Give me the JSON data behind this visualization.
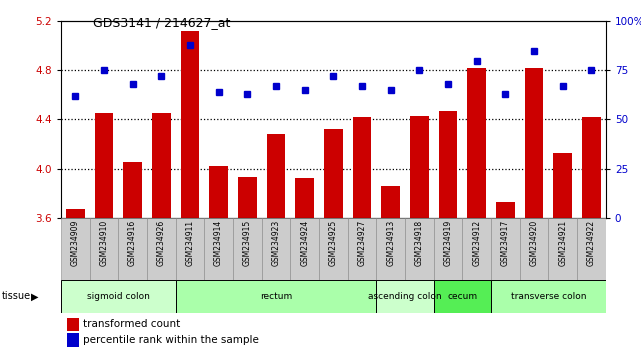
{
  "title": "GDS3141 / 214627_at",
  "samples": [
    "GSM234909",
    "GSM234910",
    "GSM234916",
    "GSM234926",
    "GSM234911",
    "GSM234914",
    "GSM234915",
    "GSM234923",
    "GSM234924",
    "GSM234925",
    "GSM234927",
    "GSM234913",
    "GSM234918",
    "GSM234919",
    "GSM234912",
    "GSM234917",
    "GSM234920",
    "GSM234921",
    "GSM234922"
  ],
  "bar_values": [
    3.67,
    4.45,
    4.05,
    4.45,
    5.12,
    4.02,
    3.93,
    4.28,
    3.92,
    4.32,
    4.42,
    3.86,
    4.43,
    4.47,
    4.82,
    3.73,
    4.82,
    4.13,
    4.42
  ],
  "dot_values": [
    62,
    75,
    68,
    72,
    88,
    64,
    63,
    67,
    65,
    72,
    67,
    65,
    75,
    68,
    80,
    63,
    85,
    67,
    75
  ],
  "ylim_left": [
    3.6,
    5.2
  ],
  "ylim_right": [
    0,
    100
  ],
  "left_ticks": [
    3.6,
    4.0,
    4.4,
    4.8,
    5.2
  ],
  "right_ticks": [
    0,
    25,
    50,
    75,
    100
  ],
  "right_tick_labels": [
    "0",
    "25",
    "50",
    "75",
    "100%"
  ],
  "tissue_groups": [
    {
      "label": "sigmoid colon",
      "start": 0,
      "end": 4,
      "color": "#ccffcc"
    },
    {
      "label": "rectum",
      "start": 4,
      "end": 11,
      "color": "#aaffaa"
    },
    {
      "label": "ascending colon",
      "start": 11,
      "end": 13,
      "color": "#ccffcc"
    },
    {
      "label": "cecum",
      "start": 13,
      "end": 15,
      "color": "#55ee55"
    },
    {
      "label": "transverse colon",
      "start": 15,
      "end": 19,
      "color": "#aaffaa"
    }
  ],
  "bar_color": "#cc0000",
  "dot_color": "#0000cc",
  "bar_bottom": 3.6,
  "tick_label_color_left": "#cc0000",
  "tick_label_color_right": "#0000cc",
  "legend_bar_label": "transformed count",
  "legend_dot_label": "percentile rank within the sample",
  "gridline_y": [
    4.0,
    4.4,
    4.8
  ]
}
